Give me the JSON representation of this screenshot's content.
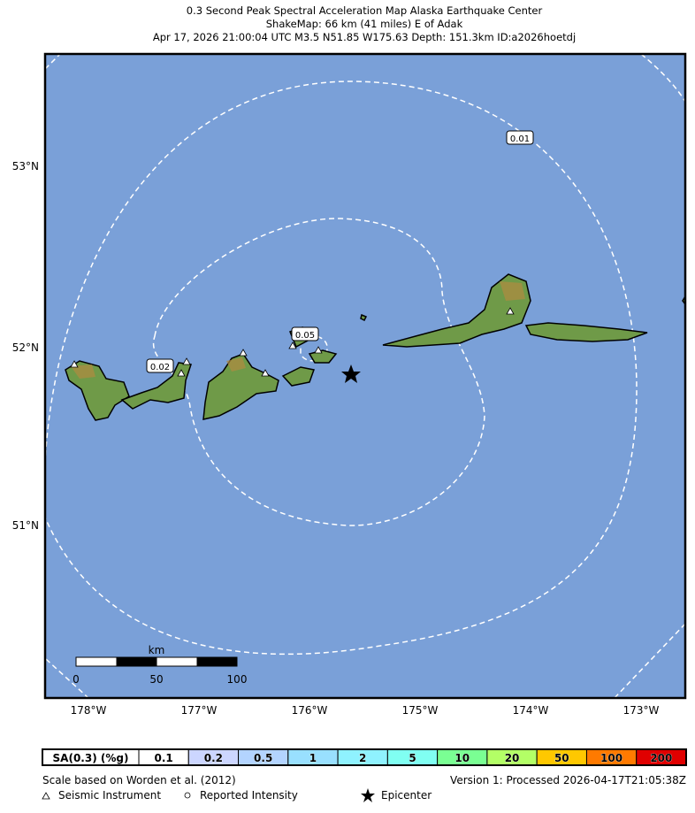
{
  "title": [
    "0.3 Second Peak Spectral Acceleration Map Alaska Earthquake Center",
    "ShakeMap: 66 km (41 miles) E of Adak",
    "Apr 17, 2026 21:00:04 UTC M3.5 N51.85 W175.63 Depth: 151.3km ID:a2026hoetdj"
  ],
  "map": {
    "lat_labels": [
      "53°N",
      "52°N",
      "51°N"
    ],
    "lon_labels": [
      "178°W",
      "177°W",
      "176°W",
      "175°W",
      "174°W",
      "173°W"
    ],
    "contour_labels": [
      "0.01",
      "0.05",
      "0.02"
    ],
    "scale_bar": {
      "unit": "km",
      "ticks": [
        "0",
        "50",
        "100"
      ]
    }
  },
  "legend": {
    "label": "SA(0.3) (%g)",
    "bins": [
      "0.1",
      "0.2",
      "0.5",
      "1",
      "2",
      "5",
      "10",
      "20",
      "50",
      "100",
      "200"
    ],
    "colors": [
      "#ffffff",
      "#ccd6ff",
      "#b3d4ff",
      "#99e0ff",
      "#8ff2ff",
      "#80fff2",
      "#7aff93",
      "#b3ff66",
      "#ffc800",
      "#ff7a00",
      "#e00000"
    ]
  },
  "footer": {
    "left": "Scale based on Worden et al. (2012)",
    "right": "Version 1: Processed 2026-04-17T21:05:38Z",
    "symbols": [
      "Seismic Instrument",
      "Reported Intensity",
      "Epicenter"
    ]
  }
}
